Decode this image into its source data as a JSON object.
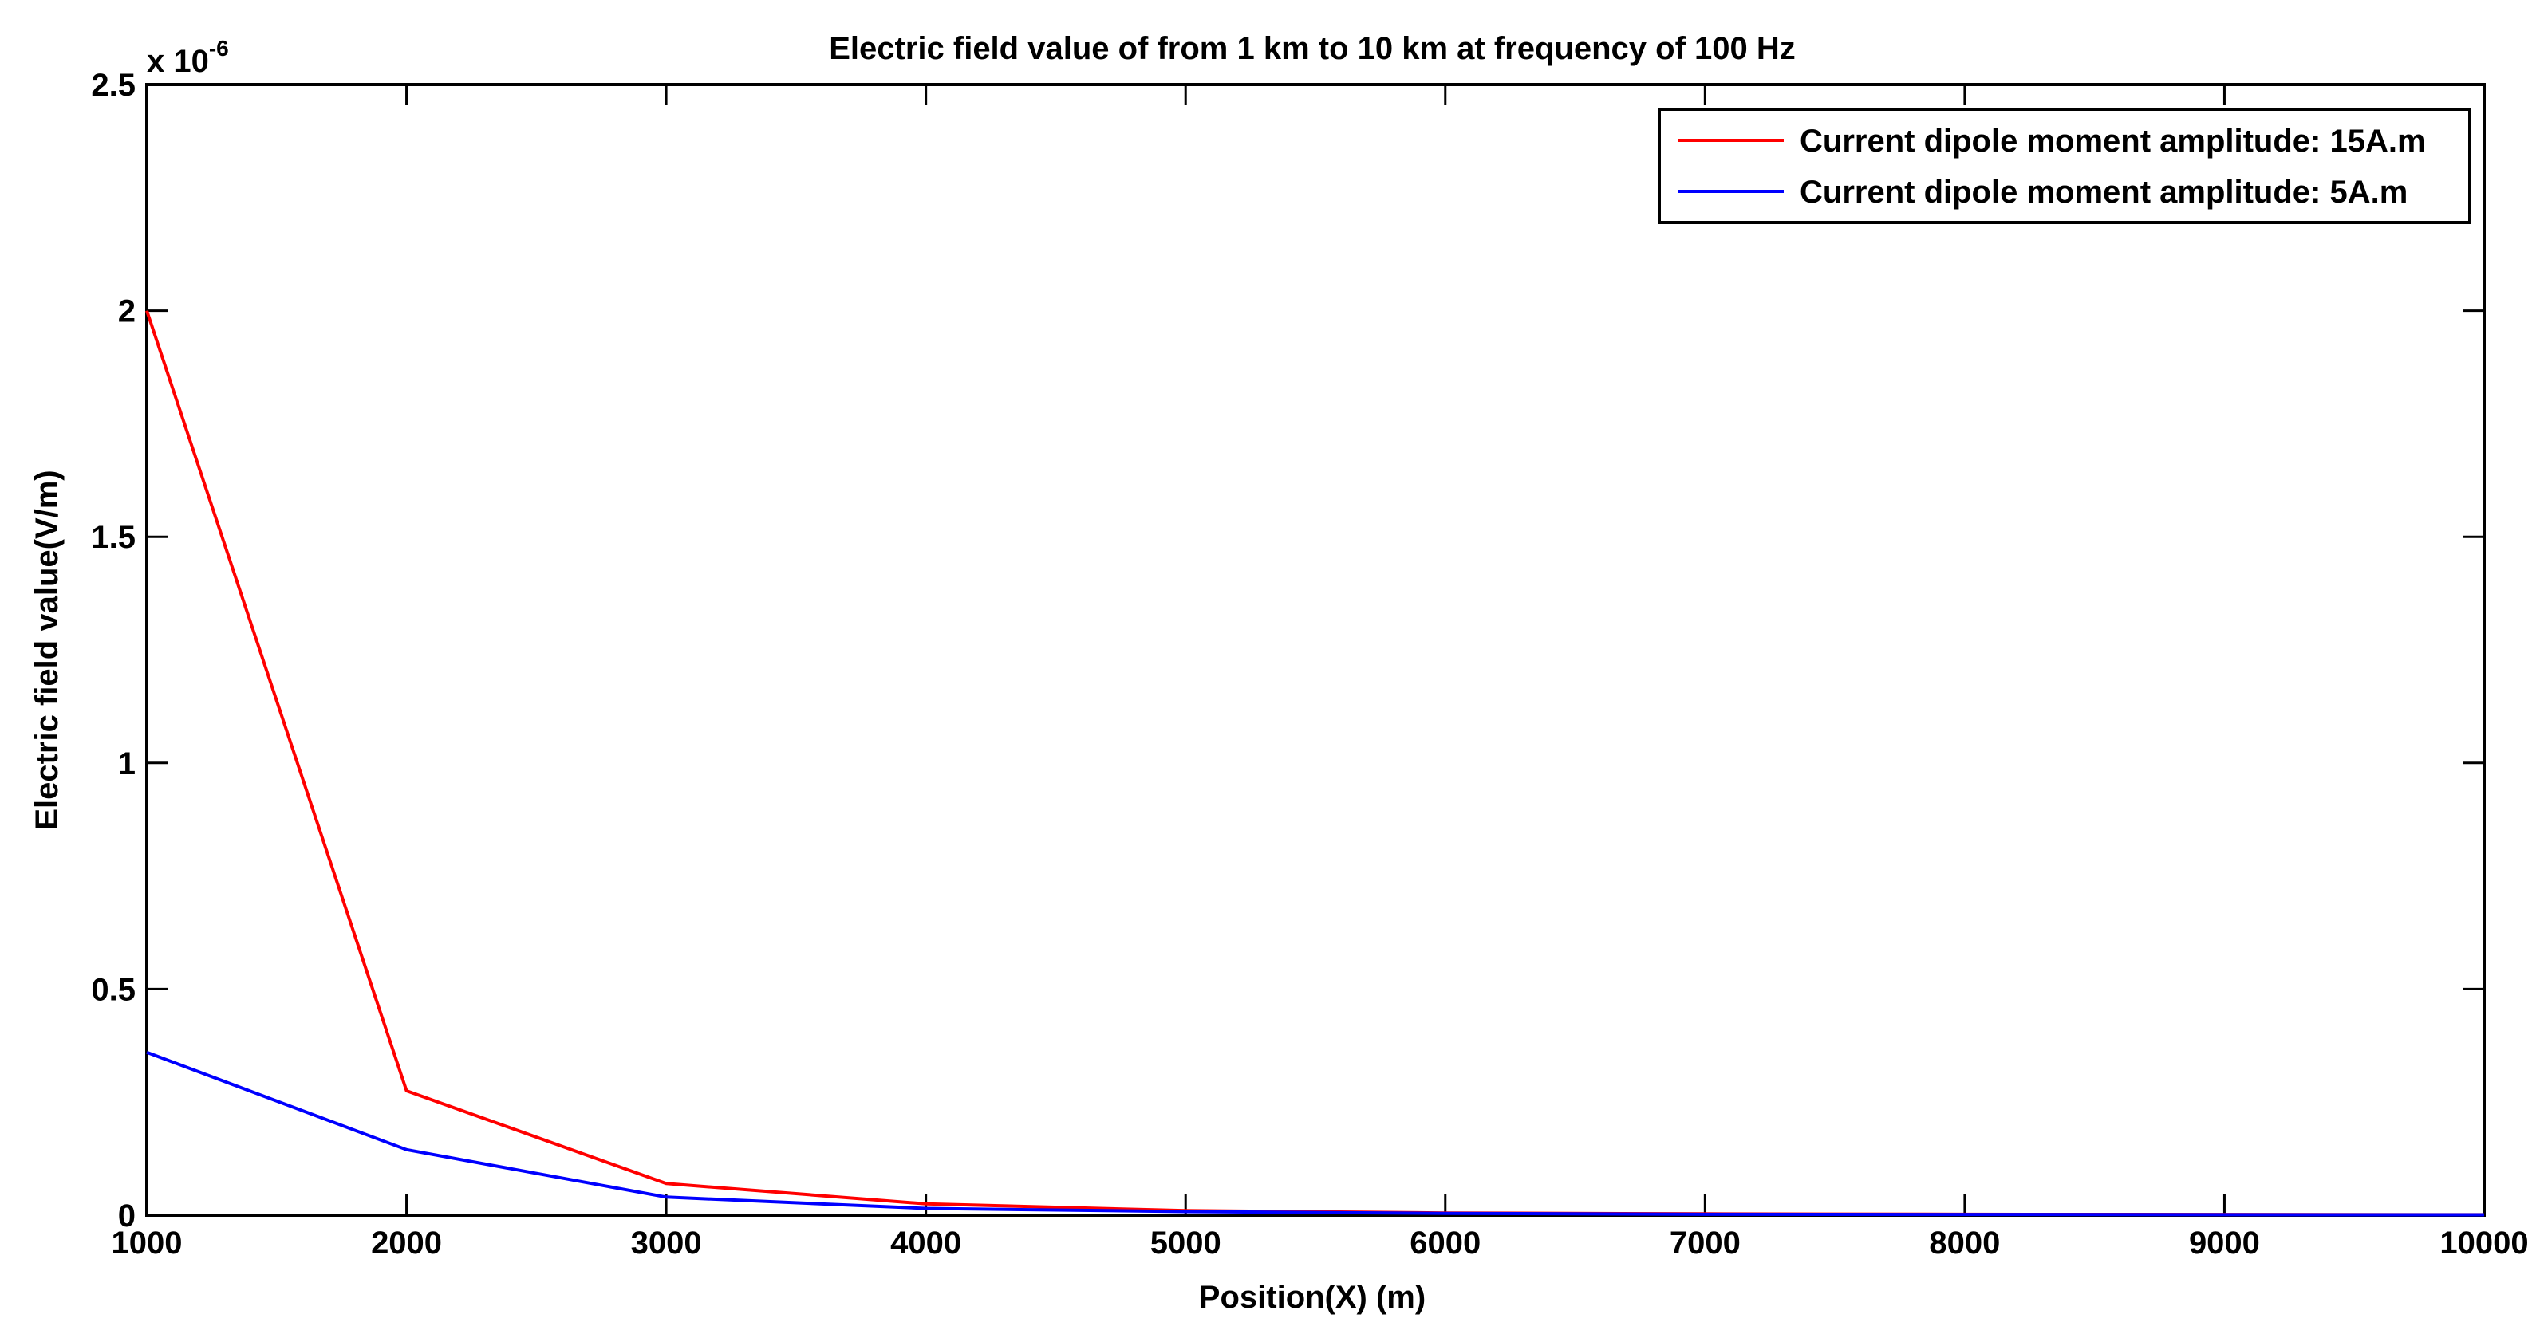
{
  "chart_data": {
    "type": "line",
    "title": "Electric field value of from 1 km to 10 km at frequency of 100 Hz",
    "xlabel": "Position(X) (m)",
    "ylabel": "Electric field value(V/m)",
    "xlim": [
      1000,
      10000
    ],
    "ylim": [
      0,
      2.5
    ],
    "y_multiplier": {
      "base": "x 10",
      "exponent": "-6"
    },
    "x_ticks": [
      1000,
      2000,
      3000,
      4000,
      5000,
      6000,
      7000,
      8000,
      9000,
      10000
    ],
    "x_tick_labels": [
      "1000",
      "2000",
      "3000",
      "4000",
      "5000",
      "6000",
      "7000",
      "8000",
      "9000",
      "10000"
    ],
    "y_ticks": [
      0,
      0.5,
      1,
      1.5,
      2,
      2.5
    ],
    "y_tick_labels": [
      "0",
      "0.5",
      "1",
      "1.5",
      "2",
      "2.5"
    ],
    "grid": false,
    "legend_position": "top-right",
    "series": [
      {
        "name": "Current dipole moment amplitude: 15A.m",
        "color": "#ff0000",
        "x": [
          1000,
          2000,
          3000,
          4000,
          5000,
          6000,
          7000,
          8000,
          9000,
          10000
        ],
        "y": [
          2.0,
          0.275,
          0.07,
          0.025,
          0.01,
          0.005,
          0.003,
          0.002,
          0.0015,
          0.001
        ]
      },
      {
        "name": "Current dipole moment amplitude: 5A.m",
        "color": "#0000ff",
        "x": [
          1000,
          2000,
          3000,
          4000,
          5000,
          6000,
          7000,
          8000,
          9000,
          10000
        ],
        "y": [
          0.36,
          0.145,
          0.04,
          0.015,
          0.008,
          0.004,
          0.002,
          0.0015,
          0.001,
          0.0008
        ]
      }
    ]
  }
}
